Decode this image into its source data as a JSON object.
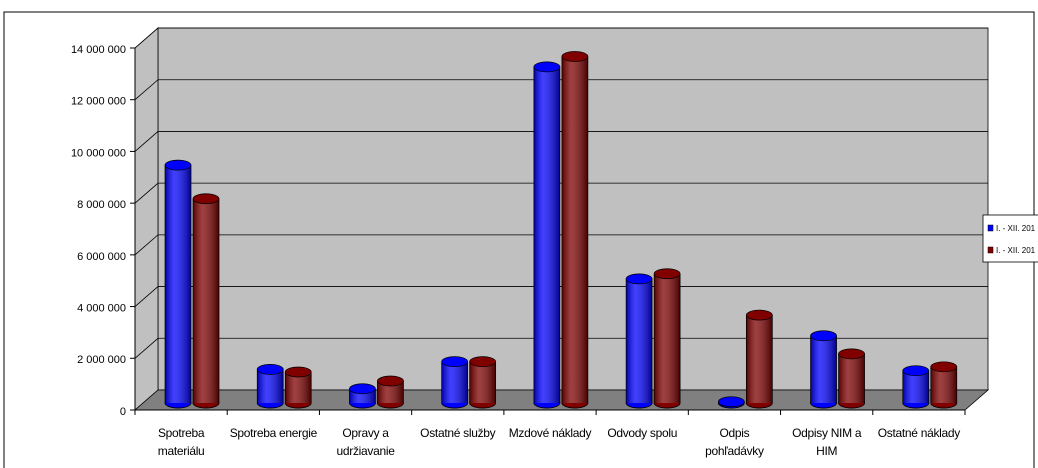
{
  "chart_data": {
    "type": "bar3d",
    "categories": [
      "Spotreba materiálu",
      "Spotreba energie",
      "Opravy a udržiavanie",
      "Ostatné služby",
      "Mzdové náklady",
      "Odvody spolu",
      "Odpis pohľadávky",
      "Odpisy NIM a HIM",
      "Ostatné náklady"
    ],
    "series": [
      {
        "name": "I. - XII. 201",
        "color": "#0000ff",
        "values": [
          9200000,
          1300000,
          550000,
          1600000,
          13000000,
          4800000,
          50000,
          2600000,
          1250000
        ]
      },
      {
        "name": "I. - XII. 201",
        "color": "#800000",
        "values": [
          7900000,
          1200000,
          850000,
          1600000,
          13400000,
          5000000,
          3400000,
          1900000,
          1400000
        ]
      }
    ],
    "ylim": [
      0,
      14000000
    ],
    "yticks": [
      {
        "value": 0,
        "label": "0"
      },
      {
        "value": 2000000,
        "label": "2 000 000"
      },
      {
        "value": 4000000,
        "label": "4 000 000"
      },
      {
        "value": 6000000,
        "label": "6 000 000"
      },
      {
        "value": 8000000,
        "label": "8 000 000"
      },
      {
        "value": 10000000,
        "label": "10 000 000"
      },
      {
        "value": 12000000,
        "label": "12 000 000"
      },
      {
        "value": 14000000,
        "label": "14 000 000"
      }
    ],
    "grid": true
  }
}
